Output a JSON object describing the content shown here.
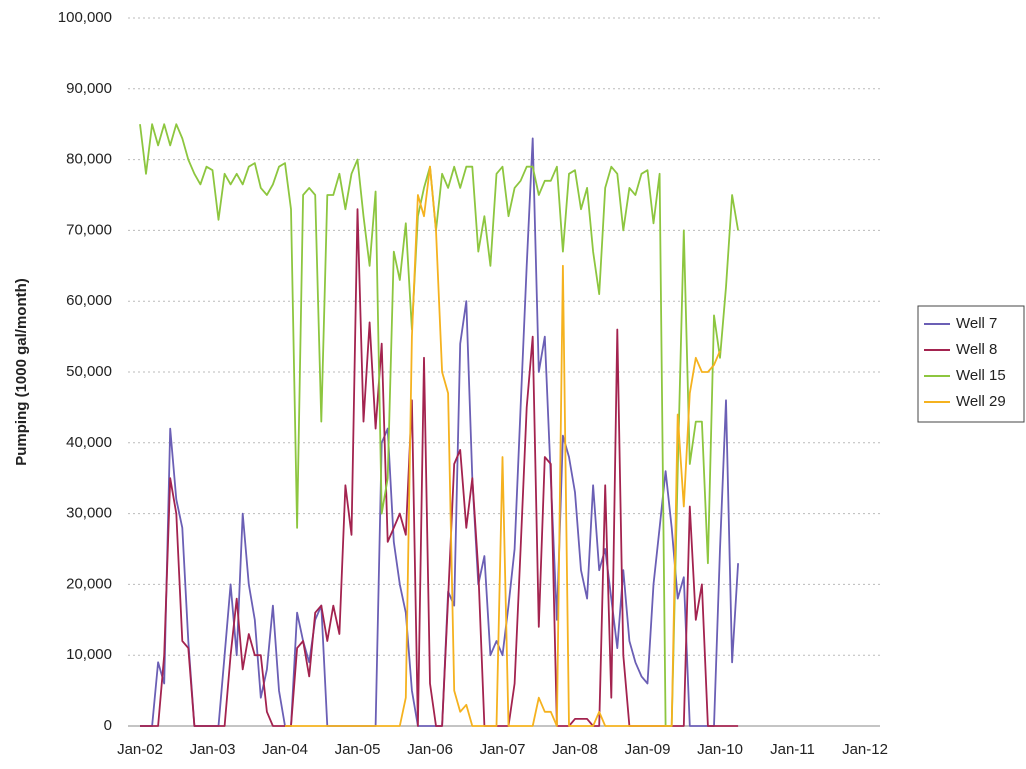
{
  "chart_data": {
    "type": "line",
    "y_label": "Pumping (1000 gal/month)",
    "categories": [
      "Jan-02",
      null,
      null,
      null,
      null,
      null,
      null,
      null,
      null,
      null,
      null,
      null,
      "Jan-03",
      null,
      null,
      null,
      null,
      null,
      null,
      null,
      null,
      null,
      null,
      null,
      "Jan-04",
      null,
      null,
      null,
      null,
      null,
      null,
      null,
      null,
      null,
      null,
      null,
      "Jan-05",
      null,
      null,
      null,
      null,
      null,
      null,
      null,
      null,
      null,
      null,
      null,
      "Jan-06",
      null,
      null,
      null,
      null,
      null,
      null,
      null,
      null,
      null,
      null,
      null,
      "Jan-07",
      null,
      null,
      null,
      null,
      null,
      null,
      null,
      null,
      null,
      null,
      null,
      "Jan-08",
      null,
      null,
      null,
      null,
      null,
      null,
      null,
      null,
      null,
      null,
      null,
      "Jan-09",
      null,
      null,
      null,
      null,
      null,
      null,
      null,
      null,
      null,
      null,
      null,
      "Jan-10",
      null,
      null,
      null,
      null,
      null,
      null,
      null,
      null,
      null,
      null,
      null,
      "Jan-11",
      null,
      null,
      null,
      null,
      null,
      null,
      null,
      null,
      null,
      null,
      null,
      "Jan-12"
    ],
    "series": [
      {
        "name": "Well 7",
        "color": "#6b5fb5",
        "values": [
          0,
          0,
          0,
          9000,
          6000,
          42000,
          32000,
          28000,
          12000,
          0,
          0,
          0,
          0,
          0,
          10000,
          20000,
          10000,
          30000,
          20000,
          15000,
          4000,
          8000,
          17000,
          5000,
          0,
          0,
          16000,
          12000,
          9000,
          15000,
          17000,
          0,
          0,
          0,
          0,
          0,
          0,
          0,
          0,
          0,
          40000,
          42000,
          26000,
          20000,
          16000,
          5000,
          0,
          0,
          0,
          0,
          0,
          19000,
          17000,
          54000,
          60000,
          35000,
          20000,
          24000,
          10000,
          12000,
          10000,
          17000,
          25000,
          45000,
          65000,
          83000,
          50000,
          55000,
          35000,
          15000,
          41000,
          38000,
          33000,
          22000,
          18000,
          34000,
          22000,
          25000,
          18000,
          11000,
          22000,
          12000,
          9000,
          7000,
          6000,
          20000,
          28000,
          36000,
          28000,
          18000,
          21000,
          0,
          0,
          0,
          0,
          0,
          25000,
          46000,
          9000,
          23000,
          null,
          null,
          null,
          null,
          null,
          null,
          null,
          null,
          null,
          null,
          null,
          null,
          null,
          null,
          null,
          null,
          null,
          null,
          null,
          null,
          null
        ]
      },
      {
        "name": "Well 8",
        "color": "#a3234f",
        "values": [
          0,
          0,
          0,
          0,
          10000,
          35000,
          30000,
          12000,
          11000,
          0,
          0,
          0,
          0,
          0,
          0,
          10000,
          18000,
          8000,
          13000,
          10000,
          10000,
          2000,
          0,
          0,
          0,
          0,
          11000,
          12000,
          7000,
          16000,
          17000,
          12000,
          17000,
          13000,
          34000,
          27000,
          73000,
          43000,
          57000,
          42000,
          54000,
          26000,
          28000,
          30000,
          27000,
          46000,
          0,
          52000,
          6000,
          0,
          0,
          18000,
          37000,
          39000,
          28000,
          35000,
          22000,
          0,
          0,
          0,
          0,
          0,
          6000,
          25000,
          45000,
          55000,
          14000,
          38000,
          37000,
          0,
          0,
          0,
          1000,
          1000,
          1000,
          0,
          0,
          34000,
          4000,
          56000,
          10000,
          0,
          0,
          0,
          0,
          0,
          0,
          0,
          0,
          0,
          0,
          31000,
          15000,
          20000,
          0,
          0,
          0,
          0,
          0,
          0,
          null,
          null,
          null,
          null,
          null,
          null,
          null,
          null,
          null,
          null,
          null,
          null,
          null,
          null,
          null,
          null,
          null,
          null,
          null,
          null,
          null
        ]
      },
      {
        "name": "Well 15",
        "color": "#8dc63f",
        "values": [
          85000,
          78000,
          85000,
          82000,
          85000,
          82000,
          85000,
          83000,
          80000,
          78000,
          76500,
          79000,
          78500,
          71500,
          78000,
          76500,
          78000,
          76500,
          79000,
          79500,
          76000,
          75000,
          76500,
          79000,
          79500,
          73000,
          28000,
          75000,
          76000,
          75000,
          43000,
          75000,
          75000,
          78000,
          73000,
          78000,
          80000,
          72000,
          65000,
          75500,
          30000,
          35000,
          67000,
          63000,
          71000,
          56000,
          72000,
          76000,
          79000,
          70000,
          78000,
          76000,
          79000,
          76000,
          79000,
          79000,
          67000,
          72000,
          65000,
          78000,
          79000,
          72000,
          76000,
          77000,
          79000,
          79000,
          75000,
          77000,
          77000,
          79000,
          67000,
          78000,
          78500,
          73000,
          76000,
          67000,
          61000,
          76000,
          79000,
          78000,
          70000,
          76000,
          75000,
          78000,
          78500,
          71000,
          78000,
          0,
          0,
          36000,
          70000,
          37000,
          43000,
          43000,
          23000,
          58000,
          52000,
          62000,
          75000,
          70000,
          null,
          null,
          null,
          null,
          null,
          null,
          null,
          null,
          null,
          null,
          null,
          null,
          null,
          null,
          null,
          null,
          null,
          null,
          null,
          null,
          null
        ]
      },
      {
        "name": "Well 29",
        "color": "#f5b21f",
        "values": [
          null,
          null,
          null,
          null,
          null,
          null,
          null,
          null,
          null,
          null,
          null,
          null,
          null,
          null,
          null,
          null,
          null,
          null,
          null,
          null,
          null,
          null,
          null,
          null,
          0,
          0,
          0,
          0,
          0,
          0,
          0,
          0,
          0,
          0,
          0,
          0,
          0,
          0,
          0,
          0,
          0,
          0,
          0,
          0,
          4000,
          55000,
          75000,
          72000,
          79000,
          70000,
          50000,
          47000,
          5000,
          2000,
          3000,
          0,
          0,
          0,
          0,
          0,
          38000,
          0,
          0,
          0,
          0,
          0,
          4000,
          2000,
          2000,
          0,
          65000,
          0,
          0,
          0,
          0,
          0,
          2000,
          0,
          0,
          0,
          0,
          0,
          0,
          0,
          0,
          0,
          0,
          0,
          0,
          44000,
          31000,
          47000,
          52000,
          50000,
          50000,
          51000,
          53000,
          null,
          null,
          null,
          null,
          null,
          null,
          null,
          null,
          null,
          null,
          null,
          null,
          null,
          null,
          null,
          null,
          null,
          null,
          null,
          null,
          null,
          null,
          null,
          null
        ]
      }
    ],
    "ylim": [
      0,
      100000
    ],
    "yticks": [
      0,
      {
        "value": 10000,
        "label": "10,000"
      },
      {
        "value": 20000,
        "label": "20,000"
      },
      {
        "value": 30000,
        "label": "30,000"
      },
      {
        "value": 40000,
        "label": "40,000"
      },
      {
        "value": 50000,
        "label": "50,000"
      },
      {
        "value": 60000,
        "label": "60,000"
      },
      {
        "value": 70000,
        "label": "70,000"
      },
      {
        "value": 80000,
        "label": "80,000"
      },
      {
        "value": 90000,
        "label": "90,000"
      },
      {
        "value": 100000,
        "label": "100,000"
      }
    ],
    "grid": true,
    "legend": "right"
  }
}
